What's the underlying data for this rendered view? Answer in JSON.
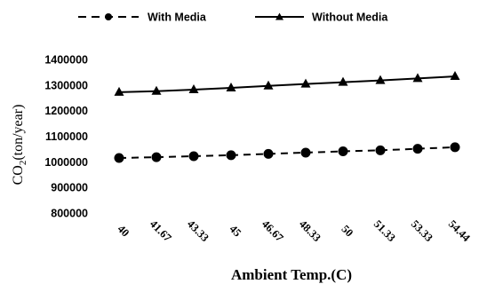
{
  "chart_data": {
    "type": "line",
    "x": [
      "40",
      "41.67",
      "43.33",
      "45",
      "46.67",
      "48.33",
      "50",
      "51.33",
      "53.33",
      "54.44"
    ],
    "series": [
      {
        "name": "With Media",
        "style": "dashed",
        "marker": "circle",
        "values": [
          1015000,
          1018000,
          1022000,
          1026000,
          1031000,
          1036000,
          1041000,
          1045000,
          1051000,
          1057000
        ]
      },
      {
        "name": "Without Media",
        "style": "solid",
        "marker": "triangle",
        "values": [
          1272000,
          1276000,
          1282000,
          1289000,
          1297000,
          1304000,
          1311000,
          1318000,
          1326000,
          1334000
        ]
      }
    ],
    "yticks": [
      "1400000",
      "1300000",
      "1200000",
      "1100000",
      "1000000",
      "900000",
      "800000"
    ],
    "ylim": [
      800000,
      1400000
    ],
    "xlabel": "Ambient Temp.(C)",
    "ylabel_main": "CO",
    "ylabel_sub": "2",
    "ylabel_rest": "(ton/year)",
    "legend_position": "top",
    "grid": false,
    "line_color": "#000000"
  }
}
